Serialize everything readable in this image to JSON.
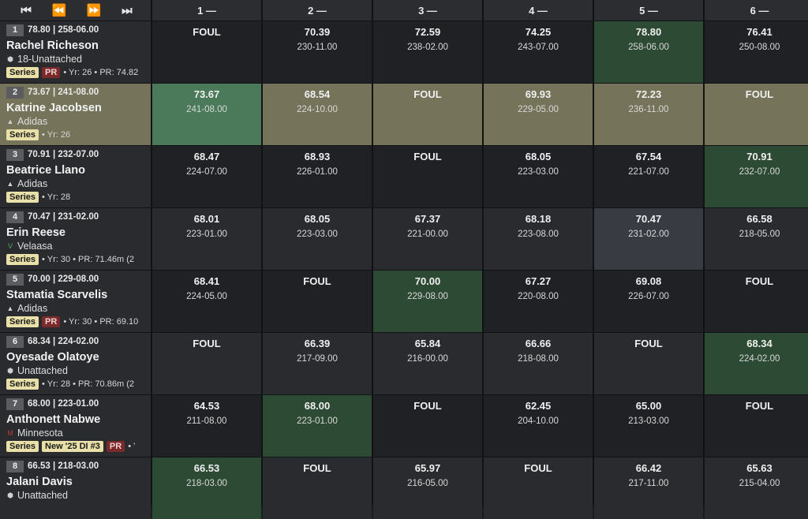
{
  "controls": {
    "first": "⏮",
    "prev": "⏪",
    "next": "⏩",
    "last": "⏭"
  },
  "rounds": [
    "1 —",
    "2 —",
    "3 —",
    "4 —",
    "5 —",
    "6 —"
  ],
  "athletes": [
    {
      "place": "1",
      "best": "78.80 | 258-06.00",
      "name": "Rachel Richeson",
      "team": "18-Unattached",
      "team_icon": "shield-icon",
      "icon_glyph": "⬢",
      "tags": {
        "series": "Series",
        "pr": "PR",
        "meta": "• Yr: 26 • PR: 74.82"
      },
      "marks": [
        {
          "m": "FOUL",
          "i": ""
        },
        {
          "m": "70.39",
          "i": "230-11.00"
        },
        {
          "m": "72.59",
          "i": "238-02.00"
        },
        {
          "m": "74.25",
          "i": "243-07.00"
        },
        {
          "m": "78.80",
          "i": "258-06.00"
        },
        {
          "m": "76.41",
          "i": "250-08.00"
        }
      ]
    },
    {
      "place": "2",
      "best": "73.67 | 241-08.00",
      "name": "Katrine Jacobsen",
      "team": "Adidas",
      "team_icon": "adidas-icon",
      "icon_glyph": "▲",
      "tags": {
        "series": "Series",
        "meta": "• Yr: 26"
      },
      "marks": [
        {
          "m": "73.67",
          "i": "241-08.00"
        },
        {
          "m": "68.54",
          "i": "224-10.00"
        },
        {
          "m": "FOUL",
          "i": ""
        },
        {
          "m": "69.93",
          "i": "229-05.00"
        },
        {
          "m": "72.23",
          "i": "236-11.00"
        },
        {
          "m": "FOUL",
          "i": ""
        }
      ]
    },
    {
      "place": "3",
      "best": "70.91 | 232-07.00",
      "name": "Beatrice Llano",
      "team": "Adidas",
      "team_icon": "adidas-icon",
      "icon_glyph": "▲",
      "tags": {
        "series": "Series",
        "meta": "• Yr: 28"
      },
      "marks": [
        {
          "m": "68.47",
          "i": "224-07.00"
        },
        {
          "m": "68.93",
          "i": "226-01.00"
        },
        {
          "m": "FOUL",
          "i": ""
        },
        {
          "m": "68.05",
          "i": "223-03.00"
        },
        {
          "m": "67.54",
          "i": "221-07.00"
        },
        {
          "m": "70.91",
          "i": "232-07.00"
        }
      ]
    },
    {
      "place": "4",
      "best": "70.47 | 231-02.00",
      "name": "Erin Reese",
      "team": "Velaasa",
      "team_icon": "velaasa-icon",
      "icon_glyph": "V",
      "tags": {
        "series": "Series",
        "meta": "• Yr: 30 • PR: 71.46m (2"
      },
      "marks": [
        {
          "m": "68.01",
          "i": "223-01.00"
        },
        {
          "m": "68.05",
          "i": "223-03.00"
        },
        {
          "m": "67.37",
          "i": "221-00.00"
        },
        {
          "m": "68.18",
          "i": "223-08.00"
        },
        {
          "m": "70.47",
          "i": "231-02.00"
        },
        {
          "m": "66.58",
          "i": "218-05.00"
        }
      ]
    },
    {
      "place": "5",
      "best": "70.00 | 229-08.00",
      "name": "Stamatia Scarvelis",
      "team": "Adidas",
      "team_icon": "adidas-icon",
      "icon_glyph": "▲",
      "tags": {
        "series": "Series",
        "pr": "PR",
        "meta": "• Yr: 30 • PR: 69.10"
      },
      "marks": [
        {
          "m": "68.41",
          "i": "224-05.00"
        },
        {
          "m": "FOUL",
          "i": ""
        },
        {
          "m": "70.00",
          "i": "229-08.00"
        },
        {
          "m": "67.27",
          "i": "220-08.00"
        },
        {
          "m": "69.08",
          "i": "226-07.00"
        },
        {
          "m": "FOUL",
          "i": ""
        }
      ]
    },
    {
      "place": "6",
      "best": "68.34 | 224-02.00",
      "name": "Oyesade Olatoye",
      "team": "Unattached",
      "team_icon": "shield-icon",
      "icon_glyph": "⬢",
      "tags": {
        "series": "Series",
        "meta": "• Yr: 28 • PR: 70.86m (2"
      },
      "marks": [
        {
          "m": "FOUL",
          "i": ""
        },
        {
          "m": "66.39",
          "i": "217-09.00"
        },
        {
          "m": "65.84",
          "i": "216-00.00"
        },
        {
          "m": "66.66",
          "i": "218-08.00"
        },
        {
          "m": "FOUL",
          "i": ""
        },
        {
          "m": "68.34",
          "i": "224-02.00"
        }
      ]
    },
    {
      "place": "7",
      "best": "68.00 | 223-01.00",
      "name": "Anthonett Nabwe",
      "team": "Minnesota",
      "team_icon": "minnesota-icon",
      "icon_glyph": "M",
      "tags": {
        "series": "Series",
        "ncaa": "New '25 DI #3",
        "pr": "PR",
        "meta": "• '"
      },
      "marks": [
        {
          "m": "64.53",
          "i": "211-08.00"
        },
        {
          "m": "68.00",
          "i": "223-01.00"
        },
        {
          "m": "FOUL",
          "i": ""
        },
        {
          "m": "62.45",
          "i": "204-10.00"
        },
        {
          "m": "65.00",
          "i": "213-03.00"
        },
        {
          "m": "FOUL",
          "i": ""
        }
      ]
    },
    {
      "place": "8",
      "best": "66.53 | 218-03.00",
      "name": "Jalani Davis",
      "team": "Unattached",
      "team_icon": "shield-icon",
      "icon_glyph": "⬢",
      "tags": {},
      "marks": [
        {
          "m": "66.53",
          "i": "218-03.00"
        },
        {
          "m": "FOUL",
          "i": ""
        },
        {
          "m": "65.97",
          "i": "216-05.00"
        },
        {
          "m": "FOUL",
          "i": ""
        },
        {
          "m": "66.42",
          "i": "217-11.00"
        },
        {
          "m": "65.63",
          "i": "215-04.00"
        }
      ]
    }
  ]
}
